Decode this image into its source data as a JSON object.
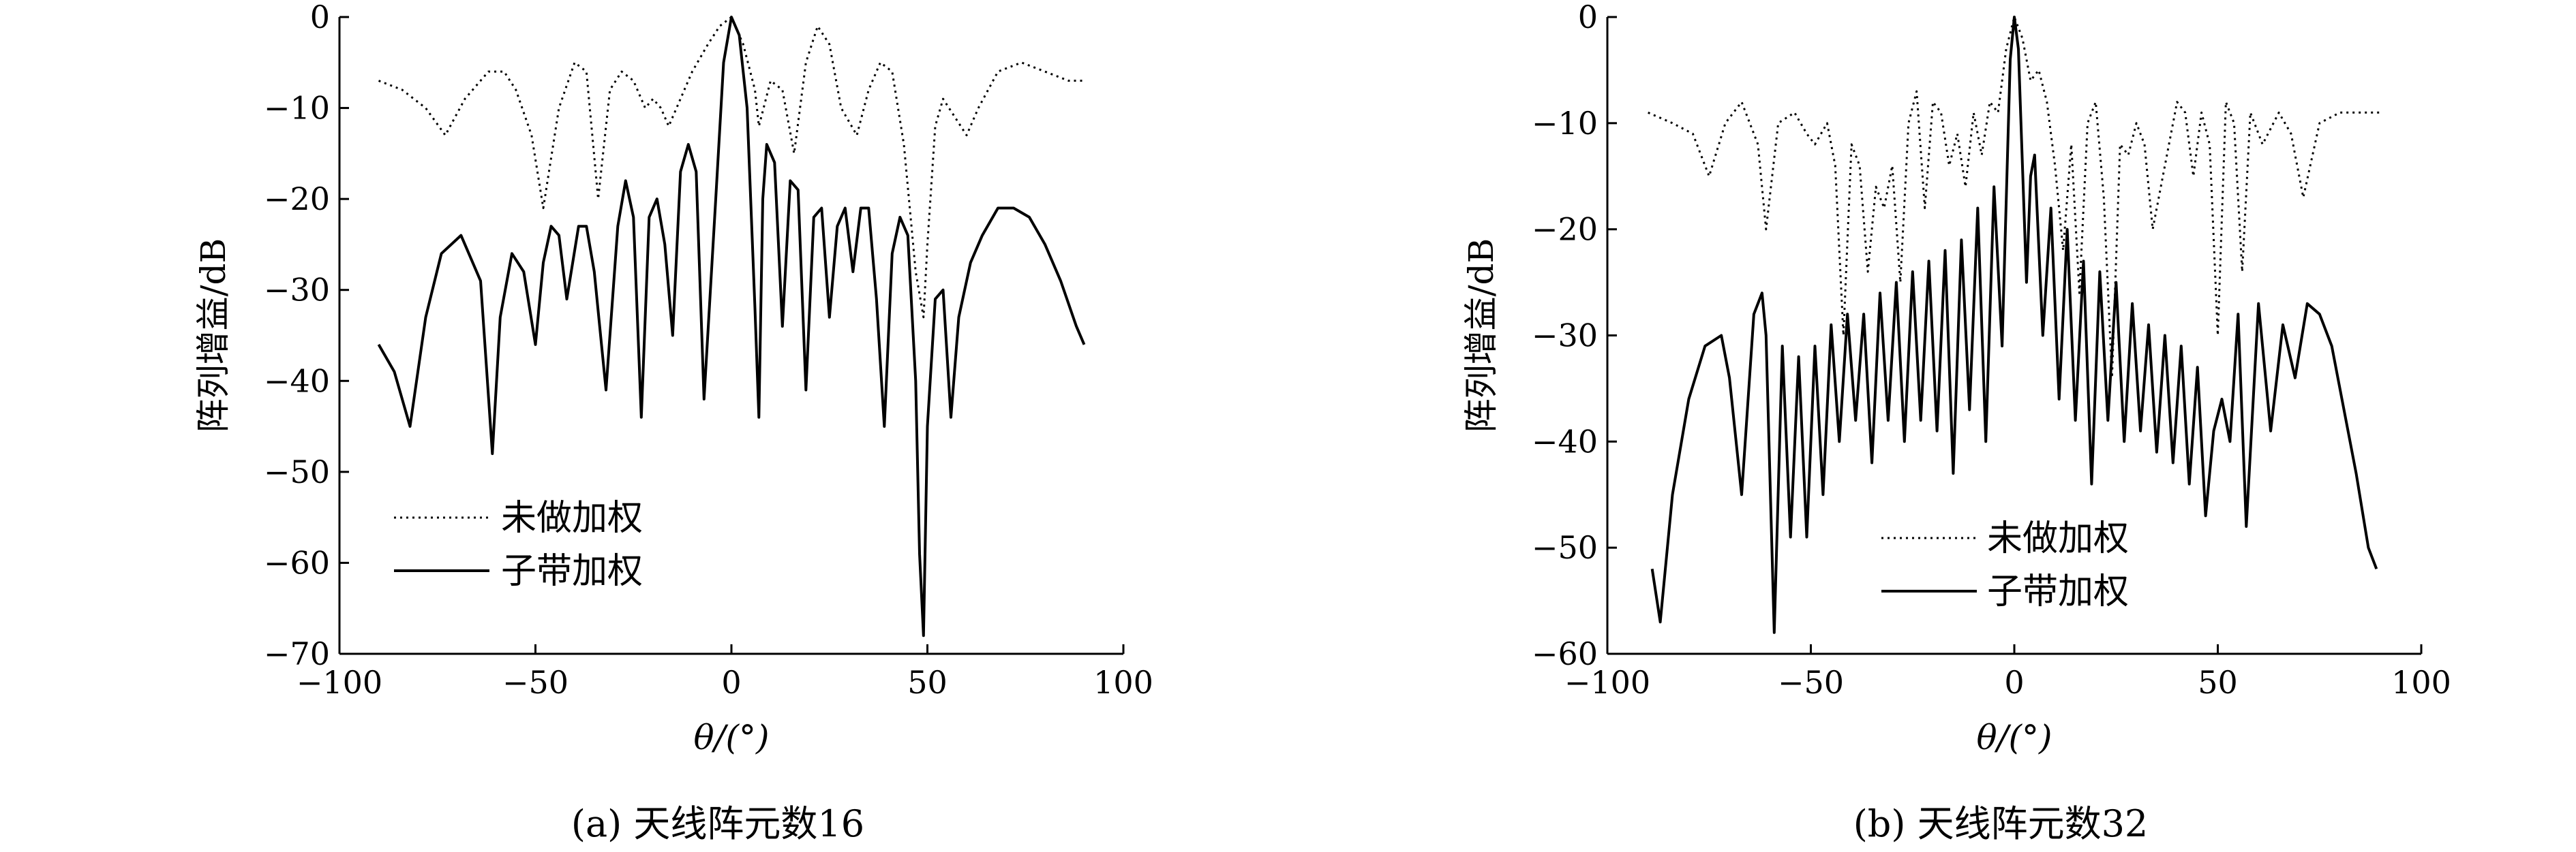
{
  "chart_data": [
    {
      "type": "line",
      "caption": "(a) 天线阵元数16",
      "xlabel": "θ/(°)",
      "ylabel": "阵列增益/dB",
      "xlim": [
        -100,
        100
      ],
      "ylim": [
        -70,
        0
      ],
      "xticks": [
        -100,
        -50,
        0,
        50,
        100
      ],
      "yticks": [
        0,
        -10,
        -20,
        -30,
        -40,
        -50,
        -60,
        -70
      ],
      "xtick_labels": [
        "−100",
        "−50",
        "0",
        "50",
        "100"
      ],
      "ytick_labels": [
        "0",
        "−10",
        "−20",
        "−30",
        "−40",
        "−50",
        "−60",
        "−70"
      ],
      "legend_placement": "lower-left",
      "series": [
        {
          "name": "未做加权",
          "style": "dotted",
          "x": [
            -90,
            -84,
            -78,
            -73,
            -68,
            -62,
            -58,
            -55,
            -51,
            -48,
            -44,
            -40,
            -37,
            -34,
            -31,
            -28,
            -25,
            -22,
            -20,
            -18,
            -16,
            -14,
            -10,
            -6,
            -3,
            0,
            3,
            6,
            7,
            10,
            13,
            16,
            19,
            22,
            25,
            28,
            32,
            35,
            38,
            41,
            44,
            47,
            49,
            50,
            52,
            54,
            57,
            60,
            63,
            68,
            74,
            80,
            86,
            90
          ],
          "y": [
            -7,
            -8,
            -10,
            -13,
            -9,
            -6,
            -6,
            -8,
            -13,
            -21,
            -10,
            -5,
            -6,
            -20,
            -8,
            -6,
            -7,
            -10,
            -9,
            -10,
            -12,
            -10,
            -6,
            -3,
            -1,
            0,
            -3,
            -8,
            -12,
            -7,
            -8,
            -15,
            -5,
            -1,
            -3,
            -10,
            -13,
            -8,
            -5,
            -6,
            -14,
            -28,
            -33,
            -25,
            -12,
            -9,
            -11,
            -13,
            -10,
            -6,
            -5,
            -6,
            -7,
            -7
          ]
        },
        {
          "name": "子带加权",
          "style": "solid",
          "x": [
            -90,
            -86,
            -82,
            -78,
            -74,
            -69,
            -64,
            -61,
            -59,
            -56,
            -53,
            -50,
            -48,
            -46,
            -44,
            -42,
            -39,
            -37,
            -35,
            -32,
            -29,
            -27,
            -25,
            -23,
            -21,
            -19,
            -17,
            -15,
            -13,
            -11,
            -9,
            -7,
            -4,
            -2,
            0,
            2,
            4,
            6,
            7,
            8,
            9,
            11,
            13,
            15,
            17,
            19,
            21,
            23,
            25,
            27,
            29,
            31,
            33,
            35,
            37,
            39,
            41,
            43,
            45,
            47,
            48,
            49,
            50,
            52,
            54,
            56,
            58,
            61,
            64,
            68,
            72,
            76,
            80,
            84,
            88,
            90
          ],
          "y": [
            -36,
            -39,
            -45,
            -33,
            -26,
            -24,
            -29,
            -48,
            -33,
            -26,
            -28,
            -36,
            -27,
            -23,
            -24,
            -31,
            -23,
            -23,
            -28,
            -41,
            -23,
            -18,
            -22,
            -44,
            -22,
            -20,
            -25,
            -35,
            -17,
            -14,
            -17,
            -42,
            -20,
            -5,
            0,
            -2,
            -10,
            -32,
            -44,
            -20,
            -14,
            -16,
            -34,
            -18,
            -19,
            -41,
            -22,
            -21,
            -33,
            -23,
            -21,
            -28,
            -21,
            -21,
            -31,
            -45,
            -26,
            -22,
            -24,
            -40,
            -59,
            -68,
            -45,
            -31,
            -30,
            -44,
            -33,
            -27,
            -24,
            -21,
            -21,
            -22,
            -25,
            -29,
            -34,
            -36
          ]
        }
      ]
    },
    {
      "type": "line",
      "caption": "(b) 天线阵元数32",
      "xlabel": "θ/(°)",
      "ylabel": "阵列增益/dB",
      "xlim": [
        -100,
        100
      ],
      "ylim": [
        -60,
        0
      ],
      "xticks": [
        -100,
        -50,
        0,
        50,
        100
      ],
      "yticks": [
        0,
        -10,
        -20,
        -30,
        -40,
        -50,
        -60
      ],
      "xtick_labels": [
        "−100",
        "−50",
        "0",
        "50",
        "100"
      ],
      "ytick_labels": [
        "0",
        "−10",
        "−20",
        "−30",
        "−40",
        "−50",
        "−60"
      ],
      "legend_placement": "lower-right",
      "series": [
        {
          "name": "未做加权",
          "style": "dotted",
          "x": [
            -90,
            -84,
            -79,
            -75,
            -71,
            -67,
            -63,
            -61,
            -58,
            -54,
            -51,
            -49,
            -46,
            -44,
            -42,
            -40,
            -38,
            -36,
            -34,
            -32,
            -30,
            -28,
            -26,
            -24,
            -22,
            -20,
            -18,
            -16,
            -14,
            -12,
            -10,
            -8,
            -6,
            -4,
            -2,
            0,
            2,
            4,
            6,
            8,
            10,
            12,
            14,
            16,
            18,
            20,
            22,
            24,
            26,
            28,
            30,
            32,
            34,
            37,
            40,
            42,
            44,
            46,
            48,
            50,
            52,
            54,
            56,
            58,
            61,
            65,
            68,
            71,
            75,
            80,
            86,
            90
          ],
          "y": [
            -9,
            -10,
            -11,
            -15,
            -10,
            -8,
            -12,
            -20,
            -10,
            -9,
            -11,
            -12,
            -10,
            -14,
            -30,
            -12,
            -14,
            -24,
            -16,
            -18,
            -14,
            -25,
            -10,
            -7,
            -18,
            -8,
            -9,
            -14,
            -11,
            -16,
            -9,
            -13,
            -8,
            -9,
            -3,
            0,
            -2,
            -6,
            -5,
            -8,
            -14,
            -22,
            -12,
            -26,
            -10,
            -8,
            -17,
            -34,
            -12,
            -13,
            -10,
            -12,
            -20,
            -14,
            -8,
            -9,
            -15,
            -9,
            -12,
            -30,
            -8,
            -10,
            -24,
            -9,
            -12,
            -9,
            -11,
            -17,
            -10,
            -9,
            -9,
            -9
          ]
        },
        {
          "name": "子带加权",
          "style": "solid",
          "x": [
            -89,
            -87,
            -84,
            -80,
            -76,
            -72,
            -70,
            -67,
            -64,
            -62,
            -61,
            -59,
            -57,
            -55,
            -53,
            -51,
            -49,
            -47,
            -45,
            -43,
            -41,
            -39,
            -37,
            -35,
            -33,
            -31,
            -29,
            -27,
            -25,
            -23,
            -21,
            -19,
            -17,
            -15,
            -13,
            -11,
            -9,
            -7,
            -5,
            -3,
            -1,
            0,
            1,
            3,
            4,
            5,
            7,
            9,
            11,
            13,
            15,
            17,
            19,
            21,
            23,
            25,
            27,
            29,
            31,
            33,
            35,
            37,
            39,
            41,
            43,
            45,
            47,
            49,
            51,
            53,
            55,
            57,
            60,
            63,
            66,
            69,
            72,
            75,
            78,
            81,
            84,
            87,
            89
          ],
          "y": [
            -52,
            -57,
            -45,
            -36,
            -31,
            -30,
            -34,
            -45,
            -28,
            -26,
            -30,
            -58,
            -31,
            -49,
            -32,
            -49,
            -31,
            -45,
            -29,
            -40,
            -28,
            -38,
            -28,
            -42,
            -26,
            -38,
            -25,
            -40,
            -24,
            -38,
            -23,
            -39,
            -22,
            -43,
            -21,
            -37,
            -18,
            -40,
            -16,
            -31,
            -4,
            0,
            -3,
            -25,
            -15,
            -13,
            -30,
            -18,
            -36,
            -20,
            -38,
            -23,
            -44,
            -24,
            -38,
            -25,
            -40,
            -27,
            -39,
            -29,
            -41,
            -30,
            -42,
            -31,
            -44,
            -33,
            -47,
            -39,
            -36,
            -40,
            -28,
            -48,
            -27,
            -39,
            -29,
            -34,
            -27,
            -28,
            -31,
            -37,
            -43,
            -50,
            -52
          ]
        }
      ]
    }
  ]
}
